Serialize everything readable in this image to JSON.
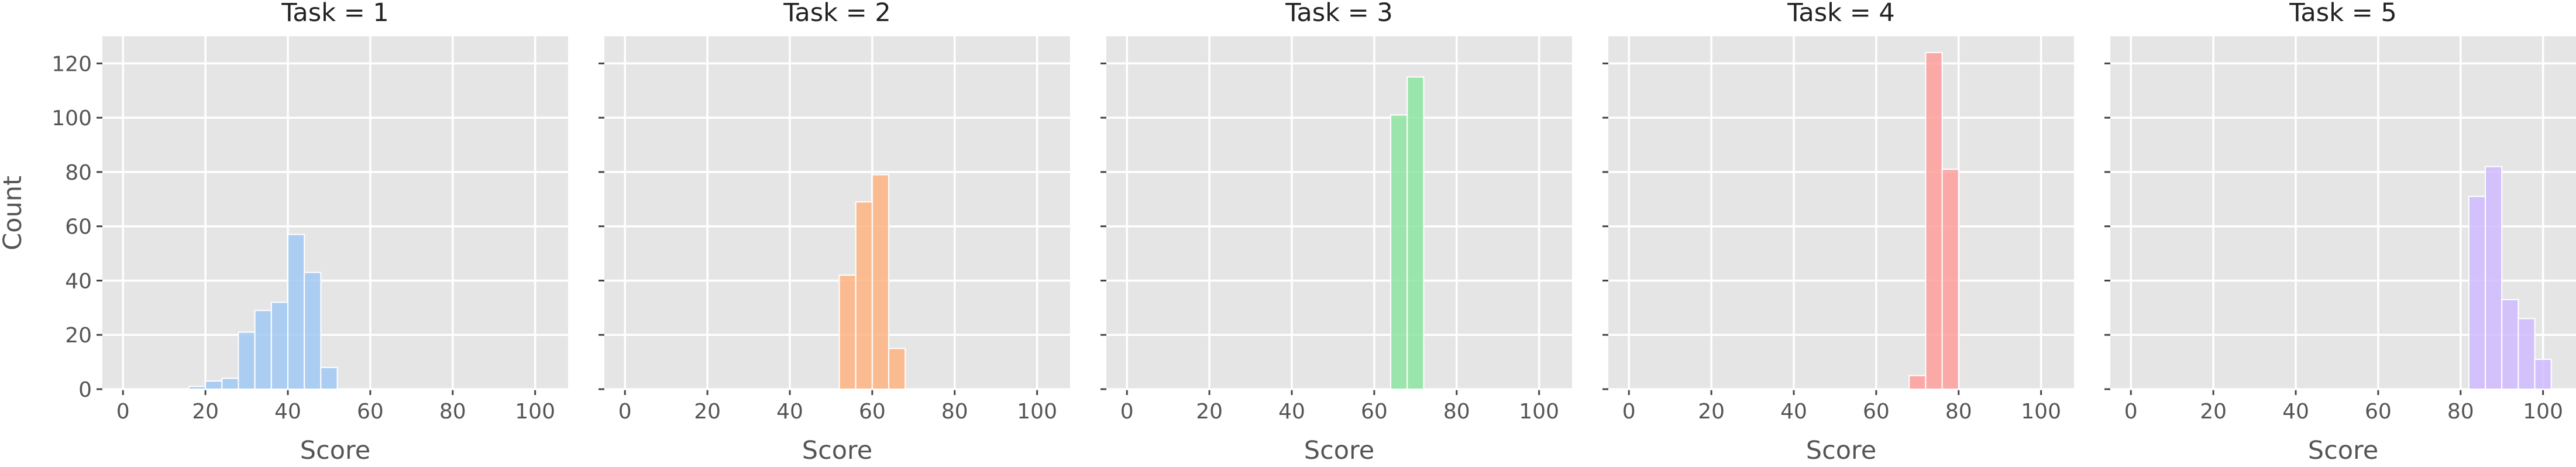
{
  "chart_data": {
    "type": "bar",
    "facet_label": "Task",
    "xlabel": "Score",
    "ylabel": "Count",
    "xlim": [
      -5,
      108
    ],
    "ylim": [
      0,
      130
    ],
    "xticks": [
      "0",
      "20",
      "40",
      "60",
      "80",
      "100"
    ],
    "yticks": [
      "0",
      "20",
      "40",
      "60",
      "80",
      "100",
      "120"
    ],
    "bin_width": 4,
    "panels": [
      {
        "title": "Task = 1",
        "color": "#a1c9f4",
        "bins": [
          {
            "x0": 16,
            "count": 1
          },
          {
            "x0": 20,
            "count": 3
          },
          {
            "x0": 24,
            "count": 4
          },
          {
            "x0": 28,
            "count": 21
          },
          {
            "x0": 32,
            "count": 29
          },
          {
            "x0": 36,
            "count": 32
          },
          {
            "x0": 40,
            "count": 57
          },
          {
            "x0": 44,
            "count": 43
          },
          {
            "x0": 48,
            "count": 8
          }
        ]
      },
      {
        "title": "Task = 2",
        "color": "#ffb482",
        "bins": [
          {
            "x0": 52,
            "count": 42
          },
          {
            "x0": 56,
            "count": 69
          },
          {
            "x0": 60,
            "count": 79
          },
          {
            "x0": 64,
            "count": 15
          }
        ]
      },
      {
        "title": "Task = 3",
        "color": "#8de5a1",
        "bins": [
          {
            "x0": 64,
            "count": 101
          },
          {
            "x0": 68,
            "count": 115
          }
        ]
      },
      {
        "title": "Task = 4",
        "color": "#ff9f9b",
        "bins": [
          {
            "x0": 68,
            "count": 5
          },
          {
            "x0": 72,
            "count": 124
          },
          {
            "x0": 76,
            "count": 81
          }
        ]
      },
      {
        "title": "Task = 5",
        "color": "#d0bbff",
        "bins": [
          {
            "x0": 82,
            "count": 71
          },
          {
            "x0": 86,
            "count": 82
          },
          {
            "x0": 90,
            "count": 33
          },
          {
            "x0": 94,
            "count": 26
          },
          {
            "x0": 98,
            "count": 11
          }
        ]
      }
    ]
  }
}
